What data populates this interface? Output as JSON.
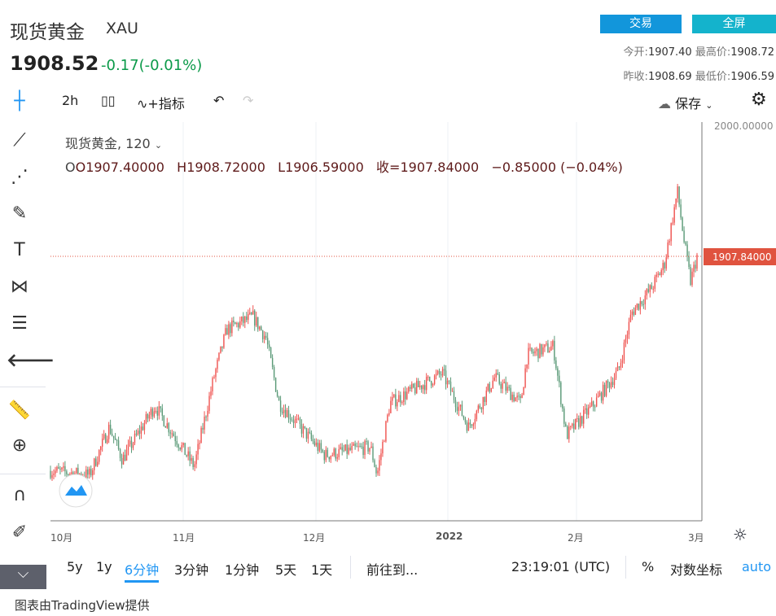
{
  "header": {
    "title": "现货黄金",
    "symbol": "XAU",
    "price": "1908.52",
    "change": "-0.17(-0.01%)",
    "trade_button": "交易",
    "fullscreen_button": "全屏",
    "stats": {
      "open_label": "今开:",
      "open": "1907.40",
      "high_label": "最高价:",
      "high": "1908.72",
      "prev_close_label": "昨收:",
      "prev_close": "1908.69",
      "low_label": "最低价:",
      "low": "1906.59"
    }
  },
  "toolbar": {
    "interval": "2h",
    "indicators": "指标",
    "save": "保存"
  },
  "legend": {
    "title": "现货黄金, 120",
    "o": "O1907.40000",
    "h": "H1908.72000",
    "l": "L1906.59000",
    "c": "收=1907.84000",
    "chg": "−0.85000 (−0.04%)"
  },
  "chart_data": {
    "type": "candlestick",
    "y_tick": "2000.00000",
    "last_price_label": "1907.84000",
    "last_price": 1907.84,
    "x_ticks": [
      "10月",
      "11月",
      "12月",
      "2022",
      "2月",
      "3月"
    ],
    "colors": {
      "up": "#ef5350",
      "down": "#5b9a78",
      "last_price": "#e0533f"
    },
    "trend_points": [
      [
        0,
        1756
      ],
      [
        6,
        1753
      ],
      [
        9,
        1787
      ],
      [
        11,
        1764
      ],
      [
        16,
        1802
      ],
      [
        22,
        1759
      ],
      [
        25,
        1822
      ],
      [
        27,
        1856
      ],
      [
        31,
        1865
      ],
      [
        33,
        1850
      ],
      [
        35,
        1804
      ],
      [
        42,
        1767
      ],
      [
        49,
        1773
      ],
      [
        50,
        1753
      ],
      [
        52,
        1804
      ],
      [
        60,
        1825
      ],
      [
        64,
        1787
      ],
      [
        68,
        1822
      ],
      [
        72,
        1804
      ],
      [
        73,
        1838
      ],
      [
        77,
        1844
      ],
      [
        79,
        1781
      ],
      [
        83,
        1802
      ],
      [
        87,
        1827
      ],
      [
        89,
        1868
      ],
      [
        92,
        1885
      ],
      [
        94,
        1902
      ],
      [
        96,
        1954
      ],
      [
        97,
        1919
      ],
      [
        98,
        1890
      ],
      [
        99,
        1907.84
      ]
    ]
  },
  "bottom": {
    "ranges": [
      "5y",
      "1y",
      "6分钟",
      "3分钟",
      "1分钟",
      "5天",
      "1天"
    ],
    "goto": "前往到...",
    "time": "23:19:01 (UTC)",
    "percent": "%",
    "log": "对数坐标",
    "auto": "auto"
  },
  "footer": "图表由TradingView提供"
}
